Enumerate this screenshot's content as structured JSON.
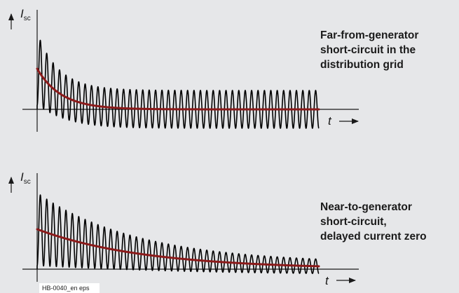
{
  "colors": {
    "background": "#e6e7e9",
    "waveform": "#000000",
    "dc_component": "#8b1a1a"
  },
  "footer": "HB-0040_en eps",
  "chart_data": [
    {
      "type": "line",
      "y_symbol": "I",
      "y_subscript": "sc",
      "x_symbol": "t",
      "caption_lines": [
        "Far-from-generator",
        "short-circuit in the",
        "distribution grid"
      ],
      "series": [],
      "dc_offset_initial": 1.0,
      "dc_decay_rate": "fast",
      "cycles": 44
    },
    {
      "type": "line",
      "y_symbol": "I",
      "y_subscript": "sc",
      "x_symbol": "t",
      "caption_lines": [
        "Near-to-generator",
        "short-circuit,",
        "delayed current zero"
      ],
      "series": [],
      "dc_offset_initial": 1.0,
      "dc_decay_rate": "slow",
      "cycles": 44
    }
  ]
}
